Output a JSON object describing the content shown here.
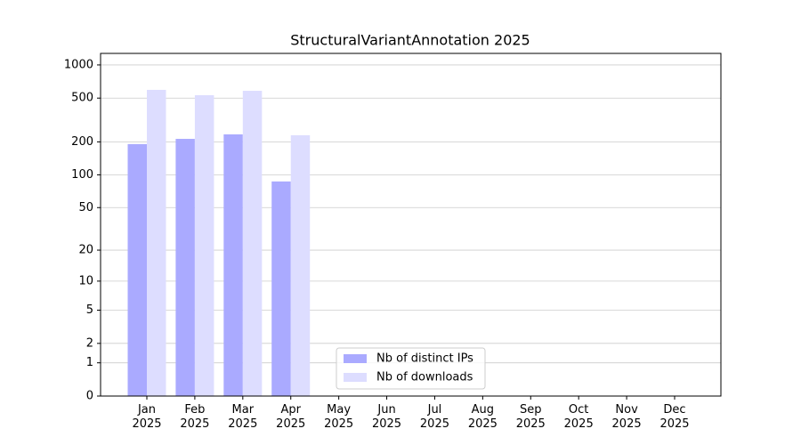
{
  "chart_data": {
    "type": "bar",
    "title": "StructuralVariantAnnotation 2025",
    "categories": [
      "Jan\n2025",
      "Feb\n2025",
      "Mar\n2025",
      "Apr\n2025",
      "May\n2025",
      "Jun\n2025",
      "Jul\n2025",
      "Aug\n2025",
      "Sep\n2025",
      "Oct\n2025",
      "Nov\n2025",
      "Dec\n2025"
    ],
    "series": [
      {
        "name": "Nb of distinct IPs",
        "color": "#aaaaff",
        "values": [
          191,
          213,
          234,
          87,
          null,
          null,
          null,
          null,
          null,
          null,
          null,
          null
        ]
      },
      {
        "name": "Nb of downloads",
        "color": "#ddddff",
        "values": [
          594,
          531,
          582,
          230,
          null,
          null,
          null,
          null,
          null,
          null,
          null,
          null
        ]
      }
    ],
    "yscale": "log1p",
    "ylim": [
      0,
      1272
    ],
    "yticks": [
      0,
      1,
      2,
      5,
      10,
      20,
      50,
      100,
      200,
      500,
      1000
    ],
    "grid": true,
    "legend": "lower center"
  }
}
